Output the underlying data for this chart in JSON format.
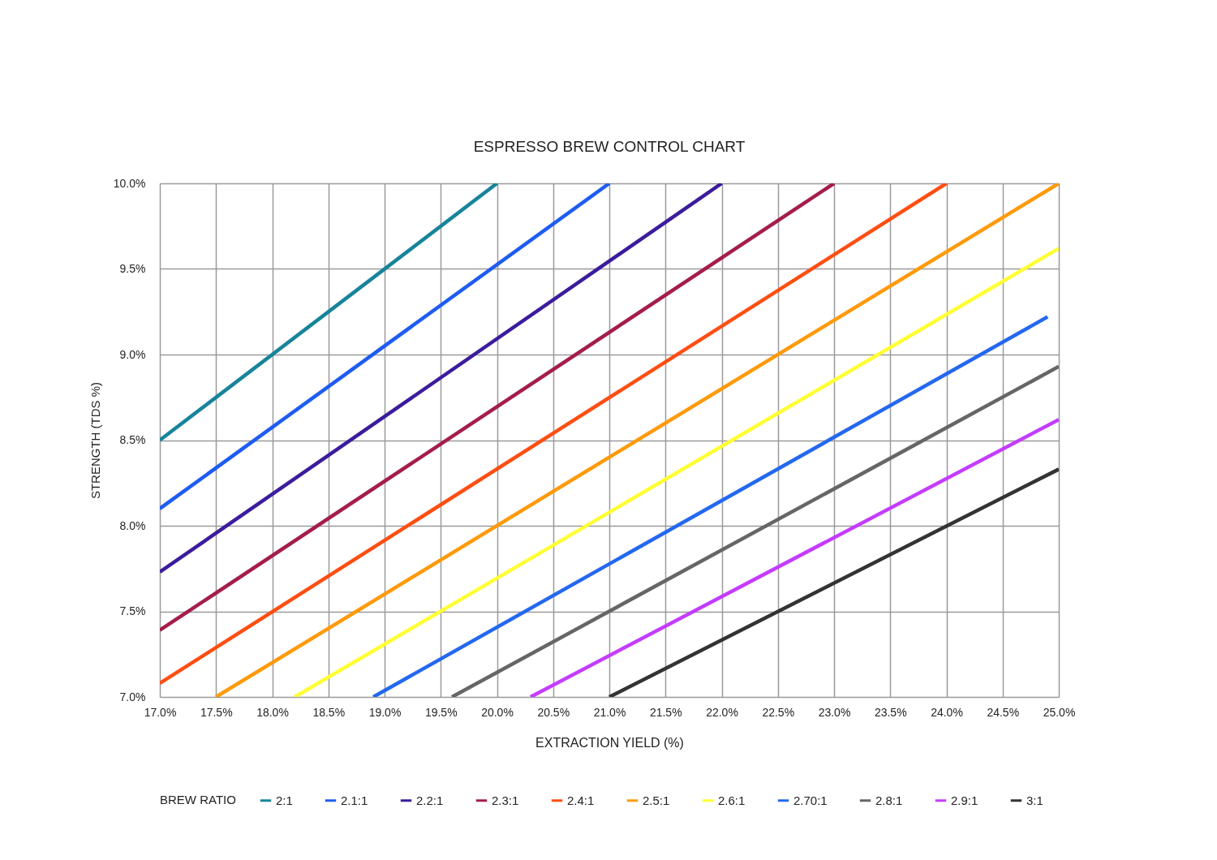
{
  "chart_data": {
    "type": "line",
    "title": "ESPRESSO BREW CONTROL CHART",
    "xlabel": "EXTRACTION YIELD (%)",
    "ylabel": "STRENGTH (TDS %)",
    "legend_title": "BREW RATIO",
    "xlim": [
      17.0,
      25.0
    ],
    "ylim": [
      7.0,
      10.0
    ],
    "xticks": [
      {
        "value": 17.0,
        "label": "17.0%"
      },
      {
        "value": 17.5,
        "label": "17.5%"
      },
      {
        "value": 18.0,
        "label": "18.0%"
      },
      {
        "value": 18.5,
        "label": "18.5%"
      },
      {
        "value": 19.0,
        "label": "19.0%"
      },
      {
        "value": 19.5,
        "label": "19.5%"
      },
      {
        "value": 20.0,
        "label": "20.0%"
      },
      {
        "value": 20.5,
        "label": "20.5%"
      },
      {
        "value": 21.0,
        "label": "21.0%"
      },
      {
        "value": 21.5,
        "label": "21.5%"
      },
      {
        "value": 22.0,
        "label": "22.0%"
      },
      {
        "value": 22.5,
        "label": "22.5%"
      },
      {
        "value": 23.0,
        "label": "23.0%"
      },
      {
        "value": 23.5,
        "label": "23.5%"
      },
      {
        "value": 24.0,
        "label": "24.0%"
      },
      {
        "value": 24.5,
        "label": "24.5%"
      },
      {
        "value": 25.0,
        "label": "25.0%"
      }
    ],
    "yticks": [
      {
        "value": 7.0,
        "label": "7.0%"
      },
      {
        "value": 7.5,
        "label": "7.5%"
      },
      {
        "value": 8.0,
        "label": "8.0%"
      },
      {
        "value": 8.5,
        "label": "8.5%"
      },
      {
        "value": 9.0,
        "label": "9.0%"
      },
      {
        "value": 9.5,
        "label": "9.5%"
      },
      {
        "value": 10.0,
        "label": "10.0%"
      }
    ],
    "grid": true,
    "legend": "bottom",
    "line_style": "solid",
    "series": [
      {
        "name": "2:1",
        "color": "#17849b",
        "x": [
          17.0,
          20.0
        ],
        "values": [
          8.5,
          10.0
        ]
      },
      {
        "name": "2.1:1",
        "color": "#1e5cf2",
        "x": [
          17.0,
          21.0
        ],
        "values": [
          8.1,
          10.0
        ]
      },
      {
        "name": "2.2:1",
        "color": "#3b1c9c",
        "x": [
          17.0,
          22.0
        ],
        "values": [
          7.73,
          10.0
        ]
      },
      {
        "name": "2.3:1",
        "color": "#a41d4c",
        "x": [
          17.0,
          23.0
        ],
        "values": [
          7.39,
          10.0
        ]
      },
      {
        "name": "2.4:1",
        "color": "#ff4e12",
        "x": [
          17.0,
          24.0
        ],
        "values": [
          7.08,
          10.0
        ]
      },
      {
        "name": "2.5:1",
        "color": "#ff9a0a",
        "x": [
          17.5,
          25.0
        ],
        "values": [
          7.0,
          10.0
        ]
      },
      {
        "name": "2.6:1",
        "color": "#ffff33",
        "x": [
          18.2,
          25.0
        ],
        "values": [
          7.0,
          9.62
        ]
      },
      {
        "name": "2.70:1",
        "color": "#2468f0",
        "x": [
          18.9,
          24.9
        ],
        "values": [
          7.0,
          9.22
        ]
      },
      {
        "name": "2.8:1",
        "color": "#666666",
        "x": [
          19.6,
          25.0
        ],
        "values": [
          7.0,
          8.93
        ]
      },
      {
        "name": "2.9:1",
        "color": "#c43cff",
        "x": [
          20.3,
          25.0
        ],
        "values": [
          7.0,
          8.62
        ]
      },
      {
        "name": "3:1",
        "color": "#333333",
        "x": [
          21.0,
          25.0
        ],
        "values": [
          7.0,
          8.33
        ]
      }
    ]
  }
}
